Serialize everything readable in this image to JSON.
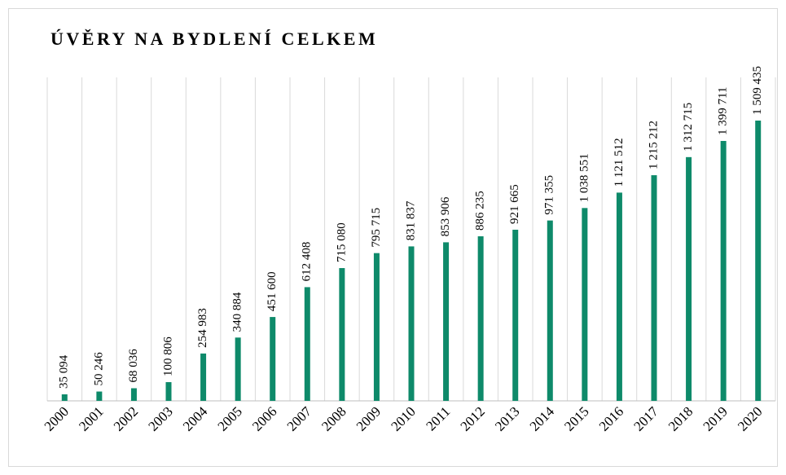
{
  "chart_data": {
    "type": "bar",
    "title": "ÚVĚRY NA BYDLENÍ CELKEM",
    "categories": [
      "2000",
      "2001",
      "2002",
      "2003",
      "2004",
      "2005",
      "2006",
      "2007",
      "2008",
      "2009",
      "2010",
      "2011",
      "2012",
      "2013",
      "2014",
      "2015",
      "2016",
      "2017",
      "2018",
      "2019",
      "2020"
    ],
    "values": [
      35094,
      50246,
      68036,
      100806,
      254983,
      340884,
      451600,
      612408,
      715080,
      795715,
      831837,
      853906,
      886235,
      921665,
      971355,
      1038551,
      1121512,
      1215212,
      1312715,
      1399711,
      1509435
    ],
    "value_labels": [
      "35 094",
      "50 246",
      "68 036",
      "100 806",
      "254 983",
      "340 884",
      "451 600",
      "612 408",
      "715 080",
      "795 715",
      "831 837",
      "853 906",
      "886 235",
      "921 665",
      "971 355",
      "1 038 551",
      "1 121 512",
      "1 215 212",
      "1 312 715",
      "1 399 711",
      "1 509 435"
    ],
    "color": "#0e8a6a",
    "grid": true
  }
}
